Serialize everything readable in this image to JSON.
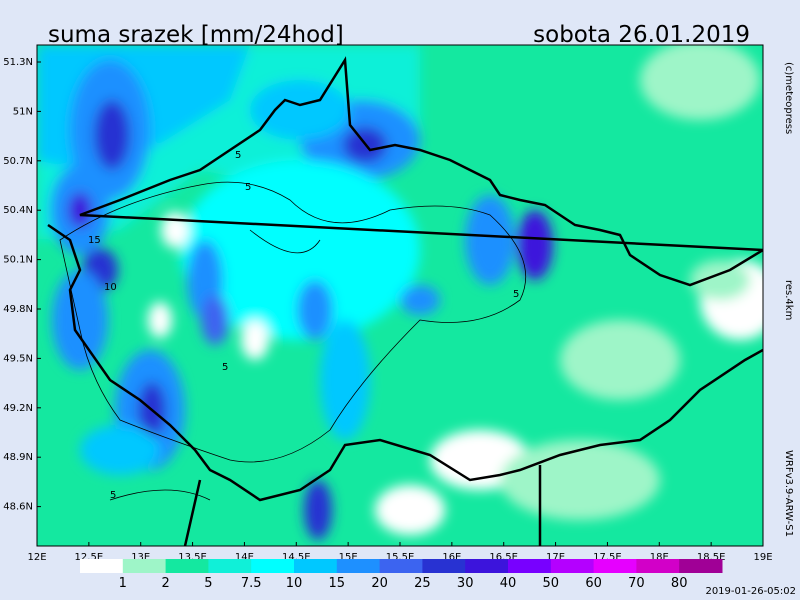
{
  "header": {
    "title": "suma srazek [mm/24hod]",
    "date": "sobota 26.01.2019"
  },
  "axes": {
    "lat_labels": [
      "51.3N",
      "51N",
      "50.7N",
      "50.4N",
      "50.1N",
      "49.8N",
      "49.5N",
      "49.2N",
      "48.9N",
      "48.6N"
    ],
    "lon_labels": [
      "12E",
      "12.5E",
      "13E",
      "13.5E",
      "14E",
      "14.5E",
      "15E",
      "15.5E",
      "16E",
      "16.5E",
      "17E",
      "17.5E",
      "18E",
      "18.5E",
      "19E"
    ]
  },
  "legend": {
    "labels": [
      1,
      2,
      5,
      7.5,
      10,
      15,
      20,
      25,
      30,
      40,
      50,
      60,
      70,
      80
    ],
    "colors": [
      "#ffffff",
      "#9ef5c8",
      "#14e8a0",
      "#10f0d8",
      "#00ffff",
      "#00c8ff",
      "#1e90ff",
      "#3c64f0",
      "#2832d2",
      "#3c14dc",
      "#7800ff",
      "#b400ff",
      "#e600ff",
      "#d200c8",
      "#a00096"
    ]
  },
  "side": {
    "credit": "(c)meteopress",
    "resolution": "res.4km",
    "model": "WRFv3.9-ARW-S1"
  },
  "footer": {
    "timestamp": "2019-01-26-05:02"
  },
  "contour_labels": [
    "5",
    "5",
    "15",
    "10",
    "5",
    "5",
    "5"
  ]
}
